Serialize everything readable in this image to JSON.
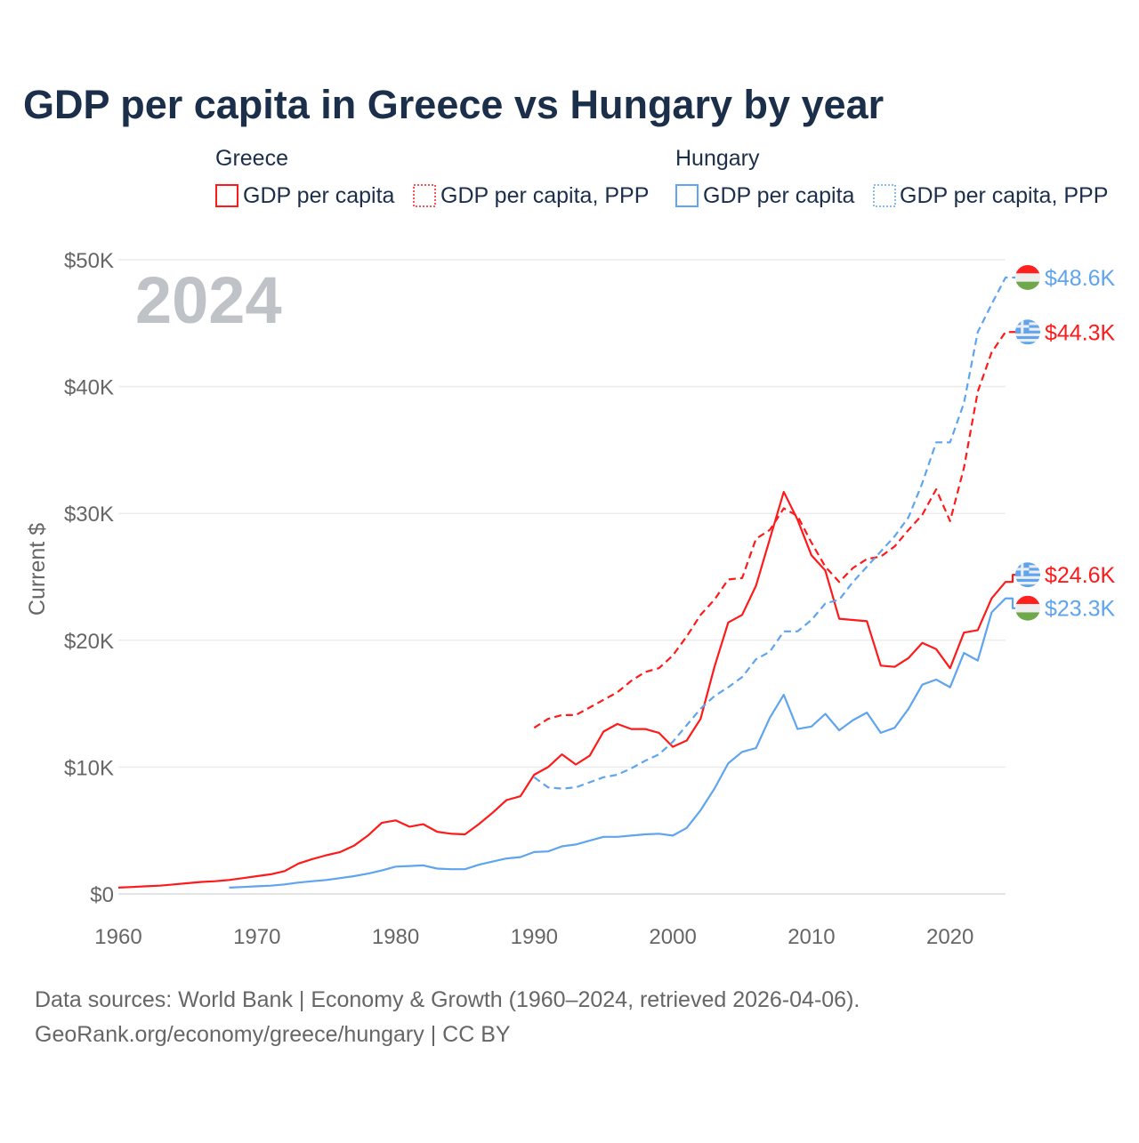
{
  "chart_data": {
    "type": "line",
    "title": "GDP per capita in Greece vs Hungary by year",
    "ylabel": "Current $",
    "xlabel": "",
    "xlim": [
      1960,
      2024
    ],
    "ylim": [
      0,
      50
    ],
    "y_unit": "thousand USD",
    "year_watermark": "2024",
    "grid": true,
    "x_ticks": [
      "1960",
      "1970",
      "1980",
      "1990",
      "2000",
      "2010",
      "2020"
    ],
    "y_ticks": [
      {
        "value": 0,
        "label": "$0"
      },
      {
        "value": 10,
        "label": "$10K"
      },
      {
        "value": 20,
        "label": "$20K"
      },
      {
        "value": 30,
        "label": "$30K"
      },
      {
        "value": 40,
        "label": "$40K"
      },
      {
        "value": 50,
        "label": "$50K"
      }
    ],
    "legend": {
      "placement": "top",
      "groups": [
        {
          "label": "Greece",
          "items": [
            "GDP per capita",
            "GDP per capita, PPP"
          ]
        },
        {
          "label": "Hungary",
          "items": [
            "GDP per capita",
            "GDP per capita, PPP"
          ]
        }
      ]
    },
    "series": [
      {
        "name": "Greece GDP per capita",
        "country": "greece",
        "style": "solid",
        "color": "#ff1a1a",
        "start": 1960,
        "end_label": "$24.6K",
        "values": [
          0.5,
          0.55,
          0.6,
          0.65,
          0.75,
          0.85,
          0.95,
          1.0,
          1.1,
          1.25,
          1.4,
          1.55,
          1.8,
          2.4,
          2.75,
          3.05,
          3.3,
          3.8,
          4.6,
          5.6,
          5.8,
          5.3,
          5.5,
          4.9,
          4.75,
          4.7,
          5.5,
          6.4,
          7.4,
          7.7,
          9.4,
          10.0,
          11.0,
          10.2,
          10.9,
          12.8,
          13.4,
          13.0,
          13.0,
          12.7,
          11.6,
          12.1,
          13.8,
          17.9,
          21.4,
          22.0,
          24.3,
          28.0,
          31.7,
          29.5,
          26.7,
          25.5,
          21.7,
          21.6,
          21.5,
          18.0,
          17.9,
          18.6,
          19.8,
          19.3,
          17.8,
          20.6,
          20.8,
          23.3,
          24.6
        ]
      },
      {
        "name": "Greece GDP per capita, PPP",
        "country": "greece",
        "style": "dashed",
        "color": "#ff1a1a",
        "start": 1990,
        "end_label": "$44.3K",
        "values": [
          13.1,
          13.8,
          14.1,
          14.1,
          14.7,
          15.3,
          15.9,
          16.8,
          17.5,
          17.8,
          18.8,
          20.3,
          22.0,
          23.2,
          24.8,
          24.9,
          28.0,
          28.7,
          30.4,
          29.8,
          27.7,
          25.8,
          24.6,
          25.7,
          26.4,
          26.6,
          27.4,
          28.7,
          29.9,
          31.9,
          29.4,
          33.6,
          39.6,
          42.7,
          44.3
        ]
      },
      {
        "name": "Hungary GDP per capita",
        "country": "hungary",
        "style": "solid",
        "color": "#5ea4ee",
        "start": 1968,
        "end_label": "$23.3K",
        "values": [
          0.5,
          0.55,
          0.6,
          0.65,
          0.75,
          0.9,
          1.0,
          1.1,
          1.25,
          1.4,
          1.6,
          1.85,
          2.15,
          2.2,
          2.25,
          2.0,
          1.95,
          1.95,
          2.3,
          2.55,
          2.8,
          2.9,
          3.3,
          3.35,
          3.75,
          3.9,
          4.2,
          4.5,
          4.5,
          4.6,
          4.7,
          4.75,
          4.6,
          5.2,
          6.6,
          8.3,
          10.3,
          11.2,
          11.5,
          13.9,
          15.7,
          13.0,
          13.2,
          14.2,
          12.9,
          13.7,
          14.3,
          12.7,
          13.1,
          14.6,
          16.5,
          16.9,
          16.3,
          19.0,
          18.4,
          22.2,
          23.3
        ]
      },
      {
        "name": "Hungary GDP per capita, PPP",
        "country": "hungary",
        "style": "dashed",
        "color": "#5ea4ee",
        "start": 1990,
        "end_label": "$48.6K",
        "values": [
          9.2,
          8.4,
          8.3,
          8.4,
          8.8,
          9.2,
          9.4,
          9.9,
          10.5,
          11.0,
          12.0,
          13.3,
          14.6,
          15.6,
          16.3,
          17.1,
          18.5,
          19.1,
          20.7,
          20.7,
          21.6,
          22.9,
          23.2,
          24.6,
          25.8,
          27.0,
          28.2,
          29.7,
          32.4,
          35.6,
          35.6,
          38.7,
          44.3,
          46.5,
          48.6
        ]
      }
    ]
  },
  "footer": {
    "line1": "Data sources: World Bank | Economy & Growth (1960–2024, retrieved 2026-04-06).",
    "line2": "GeoRank.org/economy/greece/hungary | CC BY"
  },
  "colors": {
    "greece": "#ff1a1a",
    "hungary": "#5ea4ee",
    "title": "#1b2f4b"
  }
}
